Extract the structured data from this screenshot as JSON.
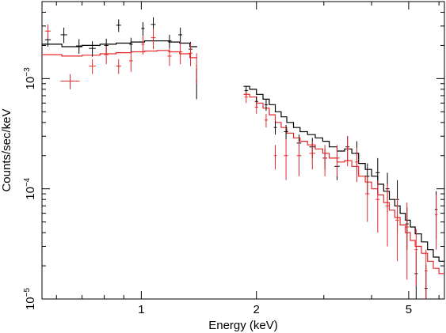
{
  "chart_data": {
    "type": "scatter",
    "title": "",
    "xlabel": "Energy (keV)",
    "ylabel": "Counts/sec/keV",
    "x_scale": "log",
    "y_scale": "log",
    "xlim": [
      0.55,
      6.2
    ],
    "ylim": [
      1e-05,
      0.005
    ],
    "x_ticks": [
      {
        "value": 1,
        "label": "1"
      },
      {
        "value": 2,
        "label": "2"
      },
      {
        "value": 5,
        "label": "5"
      }
    ],
    "y_ticks": [
      {
        "value": 0.001,
        "label": "10",
        "exp": "−3"
      },
      {
        "value": 0.0001,
        "label": "10",
        "exp": "−4"
      },
      {
        "value": 1e-05,
        "label": "10",
        "exp": "−5"
      }
    ],
    "grid": false,
    "legend": "none",
    "colors": {
      "black_series": "#000000",
      "red_series": "#e8262a"
    },
    "series": [
      {
        "color": "#000000",
        "data": [
          [
            0.56,
            0.58,
            0.00225,
            0.0003
          ],
          [
            0.615,
            0.64,
            0.0025,
            0.0004
          ],
          [
            0.675,
            0.7,
            0.00198,
            0.0003
          ],
          [
            0.73,
            0.76,
            0.00188,
            0.0003
          ],
          [
            0.8,
            0.82,
            0.002,
            0.0003
          ],
          [
            0.86,
            0.885,
            0.00305,
            0.0004
          ],
          [
            0.93,
            0.95,
            0.00205,
            0.0003
          ],
          [
            1.0,
            1.02,
            0.00285,
            0.0004
          ],
          [
            1.06,
            1.09,
            0.0031,
            0.0005
          ],
          [
            1.17,
            1.2,
            0.0022,
            0.0003
          ],
          [
            1.25,
            1.28,
            0.0025,
            0.0004
          ],
          [
            1.33,
            1.36,
            0.00185,
            0.0003
          ],
          [
            1.39,
            1.4,
            0.00095,
            0.0003
          ],
          [
            1.86,
            1.9,
            0.00078,
            8e-05
          ],
          [
            1.98,
            2.02,
            0.00062,
            7e-05
          ],
          [
            2.1,
            2.14,
            0.00058,
            7e-05
          ],
          [
            2.22,
            2.26,
            0.00036,
            5e-05
          ],
          [
            2.36,
            2.42,
            0.00033,
            5e-05
          ],
          [
            2.55,
            2.62,
            0.00026,
            5e-05
          ],
          [
            2.75,
            2.85,
            0.00024,
            5e-05
          ],
          [
            2.98,
            3.06,
            0.00019,
            4e-05
          ],
          [
            3.2,
            3.3,
            0.00016,
            4e-05
          ],
          [
            3.42,
            3.5,
            0.00024,
            6e-05
          ],
          [
            3.62,
            3.7,
            0.00021,
            6e-05
          ],
          [
            3.85,
            3.95,
            0.00013,
            4e-05
          ],
          [
            4.1,
            4.2,
            0.00014,
            5e-05
          ],
          [
            4.35,
            4.45,
            0.0001,
            4e-05
          ],
          [
            4.62,
            4.72,
            8e-05,
            4e-05
          ],
          [
            4.9,
            5.0,
            4.8e-05,
            2e-05
          ],
          [
            5.18,
            5.28,
            1.7e-05,
            1e-05
          ],
          [
            5.5,
            5.6,
            1.25e-05,
            8e-06
          ],
          [
            5.85,
            5.95,
            6.5e-05,
            3e-05
          ]
        ]
      },
      {
        "color": "#e8262a",
        "data": [
          [
            0.56,
            0.58,
            0.0027,
            0.0004
          ],
          [
            0.615,
            0.69,
            0.00095,
            0.00015
          ],
          [
            0.73,
            0.76,
            0.0013,
            0.0002
          ],
          [
            0.8,
            0.82,
            0.00165,
            0.0003
          ],
          [
            0.86,
            0.885,
            0.0013,
            0.0002
          ],
          [
            0.93,
            0.95,
            0.00145,
            0.0003
          ],
          [
            1.0,
            1.02,
            0.00205,
            0.0004
          ],
          [
            1.06,
            1.09,
            0.00235,
            0.0005
          ],
          [
            1.17,
            1.2,
            0.0016,
            0.0003
          ],
          [
            1.25,
            1.28,
            0.00175,
            0.0004
          ],
          [
            1.33,
            1.36,
            0.0017,
            0.0004
          ],
          [
            1.39,
            1.4,
            0.0013,
            0.0004
          ],
          [
            1.86,
            1.9,
            0.00068,
            8e-05
          ],
          [
            1.98,
            2.02,
            0.00055,
            7e-05
          ],
          [
            2.1,
            2.14,
            0.00042,
            6e-05
          ],
          [
            2.22,
            2.26,
            0.0002,
            5e-05
          ],
          [
            2.36,
            2.42,
            0.0002,
            8e-05
          ],
          [
            2.55,
            2.62,
            0.0002,
            7e-05
          ],
          [
            2.75,
            2.85,
            0.00021,
            6e-05
          ],
          [
            2.98,
            3.06,
            0.00019,
            6e-05
          ],
          [
            3.2,
            3.3,
            0.00019,
            6e-05
          ],
          [
            3.42,
            3.5,
            0.00023,
            7e-05
          ],
          [
            3.62,
            3.7,
            0.000175,
            6e-05
          ],
          [
            3.85,
            3.95,
            9e-05,
            4e-05
          ],
          [
            4.1,
            4.2,
            8e-05,
            4e-05
          ],
          [
            4.35,
            4.45,
            7e-05,
            4e-05
          ],
          [
            4.62,
            4.72,
            5.2e-05,
            3e-05
          ],
          [
            4.9,
            5.0,
            4.5e-05,
            3e-05
          ],
          [
            5.18,
            5.28,
            2.8e-05,
            1.5e-05
          ],
          [
            5.5,
            5.6,
            1.8e-05,
            1e-05
          ],
          [
            5.85,
            5.95,
            5.8e-05,
            3e-05
          ]
        ]
      }
    ],
    "models": [
      {
        "color": "#000000",
        "steps": [
          [
            0.55,
            0.00205
          ],
          [
            0.62,
            0.00195
          ],
          [
            0.7,
            0.002
          ],
          [
            0.78,
            0.00205
          ],
          [
            0.86,
            0.0021
          ],
          [
            0.94,
            0.00215
          ],
          [
            1.02,
            0.0022
          ],
          [
            1.1,
            0.0022
          ],
          [
            1.18,
            0.00215
          ],
          [
            1.26,
            0.0021
          ],
          [
            1.34,
            0.00195
          ],
          [
            1.4,
            null
          ],
          [
            1.85,
            0.00085
          ],
          [
            1.92,
            0.0008
          ],
          [
            2.0,
            0.00072
          ],
          [
            2.08,
            0.00065
          ],
          [
            2.16,
            0.00058
          ],
          [
            2.24,
            0.0005
          ],
          [
            2.32,
            0.00045
          ],
          [
            2.4,
            0.0004
          ],
          [
            2.5,
            0.00036
          ],
          [
            2.6,
            0.00033
          ],
          [
            2.72,
            0.00031
          ],
          [
            2.85,
            0.00029
          ],
          [
            2.98,
            0.00027
          ],
          [
            3.1,
            0.00024
          ],
          [
            3.25,
            0.00022
          ],
          [
            3.4,
            0.00023
          ],
          [
            3.55,
            0.00021
          ],
          [
            3.7,
            0.00017
          ],
          [
            3.85,
            0.00015
          ],
          [
            4.0,
            0.00013
          ],
          [
            4.15,
            0.00011
          ],
          [
            4.3,
            9.5e-05
          ],
          [
            4.45,
            8e-05
          ],
          [
            4.6,
            7e-05
          ],
          [
            4.75,
            6e-05
          ],
          [
            4.9,
            5.2e-05
          ],
          [
            5.05,
            4.5e-05
          ],
          [
            5.2,
            3.9e-05
          ],
          [
            5.4,
            3.3e-05
          ],
          [
            5.6,
            2.8e-05
          ],
          [
            5.8,
            2.4e-05
          ],
          [
            6.0,
            2.2e-05
          ],
          [
            6.2,
            null
          ]
        ]
      },
      {
        "color": "#e8262a",
        "steps": [
          [
            0.55,
            0.00165
          ],
          [
            0.62,
            0.0016
          ],
          [
            0.7,
            0.00163
          ],
          [
            0.78,
            0.00168
          ],
          [
            0.86,
            0.00172
          ],
          [
            0.94,
            0.00175
          ],
          [
            1.02,
            0.00178
          ],
          [
            1.1,
            0.0018
          ],
          [
            1.18,
            0.00175
          ],
          [
            1.26,
            0.00168
          ],
          [
            1.34,
            0.00155
          ],
          [
            1.4,
            null
          ],
          [
            1.85,
            0.00072
          ],
          [
            1.92,
            0.00068
          ],
          [
            2.0,
            0.0006
          ],
          [
            2.08,
            0.00054
          ],
          [
            2.16,
            0.00047
          ],
          [
            2.24,
            0.0004
          ],
          [
            2.32,
            0.00036
          ],
          [
            2.4,
            0.00032
          ],
          [
            2.5,
            0.00029
          ],
          [
            2.6,
            0.00027
          ],
          [
            2.72,
            0.00025
          ],
          [
            2.85,
            0.00023
          ],
          [
            2.98,
            0.00021
          ],
          [
            3.1,
            0.00019
          ],
          [
            3.25,
            0.000175
          ],
          [
            3.4,
            0.00018
          ],
          [
            3.55,
            0.00016
          ],
          [
            3.7,
            0.00013
          ],
          [
            3.85,
            0.000115
          ],
          [
            4.0,
            0.0001
          ],
          [
            4.15,
            8.8e-05
          ],
          [
            4.3,
            7.5e-05
          ],
          [
            4.45,
            6.4e-05
          ],
          [
            4.6,
            5.5e-05
          ],
          [
            4.75,
            4.7e-05
          ],
          [
            4.9,
            4e-05
          ],
          [
            5.05,
            3.4e-05
          ],
          [
            5.2,
            3e-05
          ],
          [
            5.4,
            2.6e-05
          ],
          [
            5.6,
            2.2e-05
          ],
          [
            5.8,
            1.9e-05
          ],
          [
            6.0,
            1.7e-05
          ],
          [
            6.2,
            null
          ]
        ]
      }
    ]
  }
}
